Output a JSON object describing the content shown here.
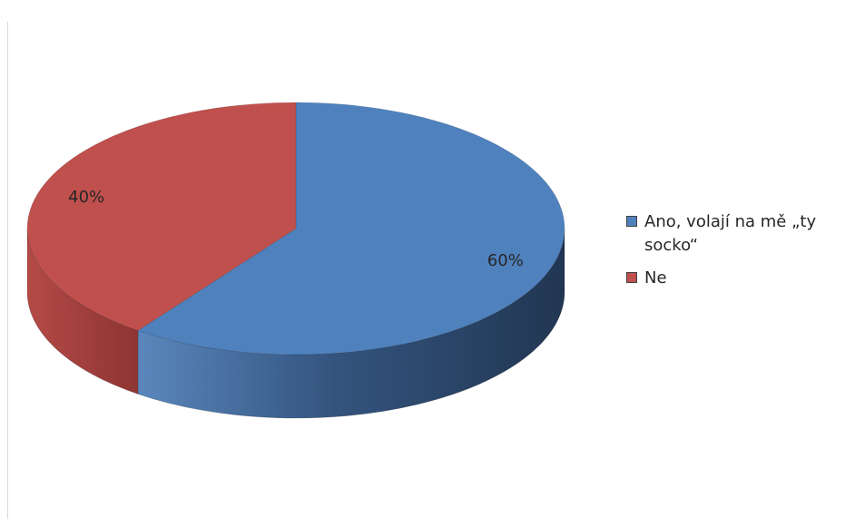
{
  "chart_data": {
    "type": "pie",
    "style": "3d",
    "slices": [
      {
        "label": "Ano, volají na mě „ty socko“",
        "value": 60,
        "value_label": "60%",
        "color": "#4f81bd"
      },
      {
        "label": "Ne",
        "value": 40,
        "value_label": "40%",
        "color": "#c0504d"
      }
    ],
    "legend_position": "right"
  }
}
